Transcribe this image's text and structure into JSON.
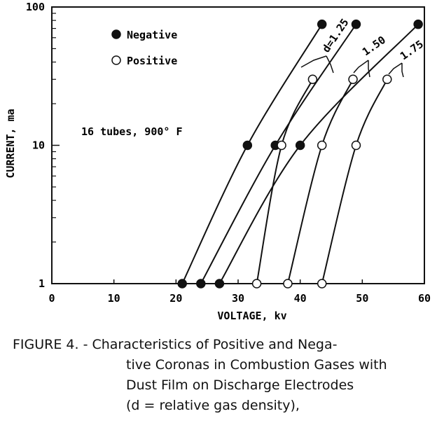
{
  "chart_data": {
    "type": "scatter",
    "xlabel": "VOLTAGE, kv",
    "ylabel": "CURRENT, ma",
    "xlim": [
      0,
      60
    ],
    "ylim": [
      1,
      100
    ],
    "yscale": "log",
    "x_ticks": [
      "0",
      "10",
      "20",
      "30",
      "40",
      "50",
      "60"
    ],
    "y_ticks": [
      "1",
      "10",
      "100"
    ],
    "annotation": "16 tubes, 900° F",
    "legend": {
      "placement": "top-left",
      "negative": "Negative",
      "positive": "Positive"
    },
    "curve_labels": [
      "d=1.25",
      "1.50",
      "1.75"
    ],
    "series": [
      {
        "polarity": "negative",
        "curve": "d=1.25",
        "x": [
          21,
          31.5,
          43.5
        ],
        "y": [
          1,
          10,
          75
        ]
      },
      {
        "polarity": "negative",
        "curve": "1.50",
        "x": [
          24,
          36,
          49
        ],
        "y": [
          1,
          10,
          75
        ]
      },
      {
        "polarity": "negative",
        "curve": "1.75",
        "x": [
          27,
          40,
          59
        ],
        "y": [
          1,
          10,
          75
        ]
      },
      {
        "polarity": "positive",
        "curve": "d=1.25",
        "x": [
          33,
          37,
          42
        ],
        "y": [
          1,
          10,
          30
        ]
      },
      {
        "polarity": "positive",
        "curve": "1.50",
        "x": [
          38,
          43.5,
          48.5
        ],
        "y": [
          1,
          10,
          30
        ]
      },
      {
        "polarity": "positive",
        "curve": "1.75",
        "x": [
          43.5,
          49,
          54
        ],
        "y": [
          1,
          10,
          30
        ]
      }
    ]
  },
  "caption": {
    "line1": "FIGURE 4. - Characteristics of Positive and Nega-",
    "line2": "tive Coronas in Combustion Gases with",
    "line3": "Dust Film on  Discharge  Electrodes",
    "line4": "(d  =  relative gas density),"
  }
}
